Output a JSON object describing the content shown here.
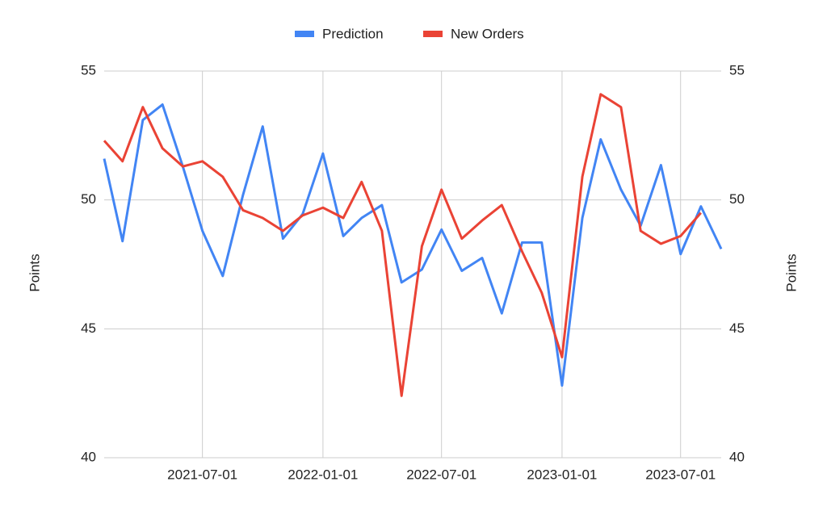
{
  "chart_data": {
    "type": "line",
    "x": [
      "2021-02-01",
      "2021-03-01",
      "2021-04-01",
      "2021-05-01",
      "2021-06-01",
      "2021-07-01",
      "2021-08-01",
      "2021-09-01",
      "2021-10-01",
      "2021-11-01",
      "2021-12-01",
      "2022-01-01",
      "2022-02-01",
      "2022-03-01",
      "2022-04-01",
      "2022-05-01",
      "2022-06-01",
      "2022-07-01",
      "2022-08-01",
      "2022-09-01",
      "2022-10-01",
      "2022-11-01",
      "2022-12-01",
      "2023-01-01",
      "2023-02-01",
      "2023-03-01",
      "2023-04-01",
      "2023-05-01",
      "2023-06-01",
      "2023-07-01",
      "2023-08-01",
      "2023-09-01"
    ],
    "series": [
      {
        "name": "Prediction",
        "color": "#4285f4",
        "values": [
          51.6,
          48.4,
          53.1,
          53.7,
          51.3,
          48.8,
          47.05,
          50.2,
          52.85,
          48.5,
          49.45,
          51.8,
          48.6,
          49.3,
          49.8,
          46.8,
          47.3,
          48.85,
          47.25,
          47.75,
          45.6,
          48.35,
          48.35,
          42.8,
          49.3,
          52.35,
          50.4,
          49.0,
          51.35,
          47.9,
          49.75,
          48.1
        ]
      },
      {
        "name": "New Orders",
        "color": "#ea4335",
        "values": [
          52.3,
          51.5,
          53.6,
          52.0,
          51.3,
          51.5,
          50.9,
          49.6,
          49.3,
          48.8,
          49.4,
          49.7,
          49.3,
          50.7,
          48.8,
          42.4,
          48.2,
          50.4,
          48.5,
          49.2,
          49.8,
          48.0,
          46.4,
          43.9,
          50.9,
          54.1,
          53.6,
          48.8,
          48.3,
          48.6,
          49.5,
          null
        ]
      }
    ],
    "xlim": [
      "2021-02-01",
      "2023-09-01"
    ],
    "xticks": [
      "2021-07-01",
      "2022-01-01",
      "2022-07-01",
      "2023-01-01",
      "2023-07-01"
    ],
    "ylim": [
      40,
      55
    ],
    "yticks": [
      40,
      45,
      50,
      55
    ],
    "y2lim": [
      40,
      55
    ],
    "y2ticks": [
      40,
      45,
      50,
      55
    ],
    "y_label": "Points",
    "y2_label": "Points",
    "grid": true,
    "legend": "top"
  }
}
